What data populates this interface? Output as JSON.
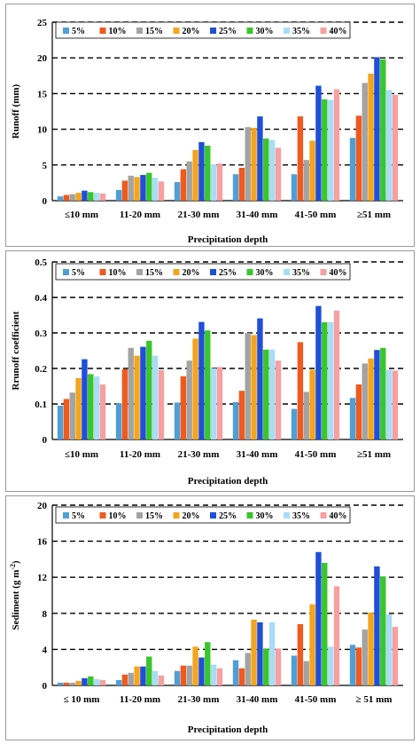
{
  "chart_data": [
    {
      "type": "bar",
      "xlabel": "Precipitation depth",
      "ylabel": "Runoff (mm)",
      "ylim": [
        0,
        25
      ],
      "yticks": [
        "0",
        "5",
        "10",
        "15",
        "20",
        "25"
      ],
      "ytick_values": [
        0,
        5,
        10,
        15,
        20,
        25
      ],
      "grid": "dashed-horizontal",
      "legend_position": "top",
      "categories": [
        "≤10 mm",
        "11-20 mm",
        "21-30 mm",
        "31-40 mm",
        "41-50 mm",
        "≥51 mm"
      ],
      "series": [
        {
          "name": "5%",
          "color": "#4f9fd6",
          "values": [
            0.6,
            1.5,
            2.6,
            3.7,
            3.7,
            8.8
          ]
        },
        {
          "name": "10%",
          "color": "#f05a1e",
          "values": [
            0.8,
            2.8,
            4.4,
            4.6,
            11.8,
            11.9
          ]
        },
        {
          "name": "15%",
          "color": "#a3a3a3",
          "values": [
            0.9,
            3.5,
            5.5,
            10.3,
            5.7,
            16.5
          ]
        },
        {
          "name": "20%",
          "color": "#f3a51d",
          "values": [
            1.1,
            3.3,
            7.1,
            10.2,
            8.4,
            17.8
          ]
        },
        {
          "name": "25%",
          "color": "#1f4fd8",
          "values": [
            1.4,
            3.6,
            8.2,
            11.8,
            16.1,
            20.1
          ]
        },
        {
          "name": "30%",
          "color": "#39c62c",
          "values": [
            1.2,
            3.9,
            7.7,
            8.7,
            14.2,
            19.8
          ]
        },
        {
          "name": "35%",
          "color": "#a9dcf5",
          "values": [
            1.1,
            3.2,
            5.1,
            8.5,
            14.1,
            15.5
          ]
        },
        {
          "name": "40%",
          "color": "#f6a0a0",
          "values": [
            1.0,
            2.7,
            5.2,
            7.4,
            15.6,
            14.8
          ]
        }
      ]
    },
    {
      "type": "bar",
      "xlabel": "Precipitation depth",
      "ylabel": "Rrunoff coefficient",
      "ylim": [
        0,
        0.5
      ],
      "yticks": [
        "0",
        "0.1",
        "0.2",
        "0.3",
        "0.4",
        "0.5"
      ],
      "ytick_values": [
        0,
        0.1,
        0.2,
        0.3,
        0.4,
        0.5
      ],
      "grid": "dashed-horizontal",
      "legend_position": "top",
      "categories": [
        "≤10 mm",
        "11-20 mm",
        "21-30 mm",
        "31-40 mm",
        "41-50 mm",
        "≥51 mm"
      ],
      "series": [
        {
          "name": "5%",
          "color": "#4f9fd6",
          "values": [
            0.095,
            0.102,
            0.104,
            0.105,
            0.086,
            0.117
          ]
        },
        {
          "name": "10%",
          "color": "#f05a1e",
          "values": [
            0.114,
            0.198,
            0.178,
            0.137,
            0.274,
            0.155
          ]
        },
        {
          "name": "15%",
          "color": "#a3a3a3",
          "values": [
            0.132,
            0.258,
            0.222,
            0.3,
            0.134,
            0.214
          ]
        },
        {
          "name": "20%",
          "color": "#f3a51d",
          "values": [
            0.173,
            0.236,
            0.284,
            0.294,
            0.196,
            0.228
          ]
        },
        {
          "name": "25%",
          "color": "#1f4fd8",
          "values": [
            0.226,
            0.261,
            0.331,
            0.341,
            0.376,
            0.252
          ]
        },
        {
          "name": "30%",
          "color": "#39c62c",
          "values": [
            0.184,
            0.278,
            0.307,
            0.253,
            0.33,
            0.258
          ]
        },
        {
          "name": "35%",
          "color": "#a9dcf5",
          "values": [
            0.178,
            0.236,
            0.2,
            0.253,
            0.33,
            0.196
          ]
        },
        {
          "name": "40%",
          "color": "#f6a0a0",
          "values": [
            0.155,
            0.195,
            0.204,
            0.222,
            0.363,
            0.194
          ]
        }
      ]
    },
    {
      "type": "bar",
      "xlabel": "Precipitation depth",
      "ylabel": "Sediment (g m",
      "ylabel_sup": "-2",
      "ylabel_end": ")",
      "ylim": [
        0,
        20
      ],
      "yticks": [
        "0",
        "4",
        "8",
        "12",
        "16",
        "20"
      ],
      "ytick_values": [
        0,
        4,
        8,
        12,
        16,
        20
      ],
      "grid": "dashed-horizontal",
      "legend_position": "top",
      "categories": [
        "≤ 10 mm",
        "11-20 mm",
        "21-30 mm",
        "31-40 mm",
        "41-50 mm",
        "≥ 51 mm"
      ],
      "series": [
        {
          "name": "5%",
          "color": "#4f9fd6",
          "values": [
            0.3,
            0.6,
            1.6,
            2.8,
            3.3,
            4.5
          ]
        },
        {
          "name": "10%",
          "color": "#f05a1e",
          "values": [
            0.3,
            1.2,
            2.2,
            1.9,
            6.8,
            4.2
          ]
        },
        {
          "name": "15%",
          "color": "#a3a3a3",
          "values": [
            0.3,
            1.4,
            2.2,
            3.6,
            2.7,
            6.2
          ]
        },
        {
          "name": "20%",
          "color": "#f3a51d",
          "values": [
            0.5,
            2.1,
            4.3,
            7.3,
            9.0,
            8.1
          ]
        },
        {
          "name": "25%",
          "color": "#1f4fd8",
          "values": [
            0.8,
            2.1,
            3.1,
            7.0,
            14.8,
            13.2
          ]
        },
        {
          "name": "30%",
          "color": "#39c62c",
          "values": [
            1.0,
            3.2,
            4.8,
            4.1,
            13.6,
            12.1
          ]
        },
        {
          "name": "35%",
          "color": "#a9dcf5",
          "values": [
            0.7,
            1.6,
            2.3,
            7.0,
            4.3,
            7.9
          ]
        },
        {
          "name": "40%",
          "color": "#f6a0a0",
          "values": [
            0.6,
            1.1,
            1.9,
            4.1,
            11.0,
            6.5
          ]
        }
      ]
    }
  ]
}
